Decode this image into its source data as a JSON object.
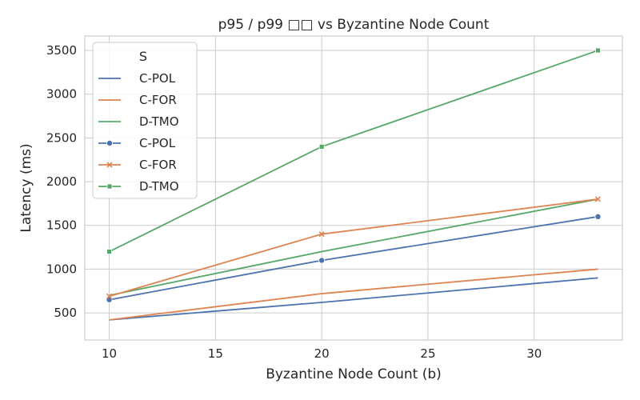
{
  "chart_data": {
    "type": "line",
    "title": "p95 / p99 □□ vs Byzantine Node Count",
    "xlabel": "Byzantine Node Count (b)",
    "ylabel": "Latency (ms)",
    "xlim": [
      8.85,
      34.15
    ],
    "ylim": [
      190,
      3665
    ],
    "xticks": [
      10,
      15,
      20,
      25,
      30
    ],
    "yticks": [
      500,
      1000,
      1500,
      2000,
      2500,
      3000,
      3500
    ],
    "grid": true,
    "legend": {
      "title": "S",
      "position": "upper-left"
    },
    "x": [
      10,
      20,
      33
    ],
    "series": [
      {
        "name": "C-POL",
        "color": "#4c72b0",
        "marker": "none",
        "values": [
          420,
          620,
          900
        ]
      },
      {
        "name": "C-FOR",
        "color": "#dd8452",
        "marker": "none",
        "values": [
          420,
          720,
          1000
        ]
      },
      {
        "name": "D-TMO",
        "color": "#55a868",
        "marker": "none",
        "values": [
          700,
          1200,
          1800
        ]
      },
      {
        "name": "C-POL",
        "color": "#4c72b0",
        "marker": "circle",
        "values": [
          650,
          1100,
          1600
        ]
      },
      {
        "name": "C-FOR",
        "color": "#dd8452",
        "marker": "x",
        "values": [
          690,
          1400,
          1800
        ]
      },
      {
        "name": "D-TMO",
        "color": "#55a868",
        "marker": "square",
        "values": [
          1200,
          2400,
          3500
        ]
      }
    ]
  }
}
